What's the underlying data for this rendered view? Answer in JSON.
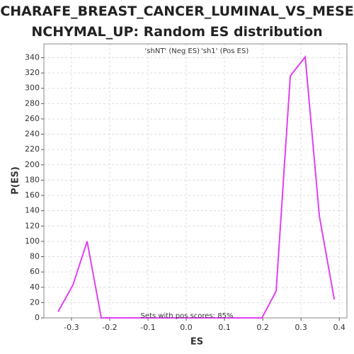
{
  "chart_data": {
    "type": "line",
    "title": "CHARAFE_BREAST_CANCER_LUMINAL_VS_MESENCHYMAL_UP: Random ES distribution",
    "x_label": "ES",
    "y_label": "P(ES)",
    "legend": [
      {
        "name": "'shNT' (Neg ES)",
        "color": "#4040d0"
      },
      {
        "name": "'sh1' (Pos ES)",
        "color": "#e03030"
      }
    ],
    "annotation": "Sets with pos scores: 85%",
    "x": [
      -0.335,
      -0.296,
      -0.259,
      -0.222,
      0.198,
      0.235,
      0.272,
      0.311,
      0.348,
      0.387
    ],
    "series": [
      {
        "color": "#e040f0",
        "values": [
          8,
          43,
          100,
          0,
          0,
          35,
          316,
          341,
          133,
          24
        ]
      }
    ],
    "xlim": [
      -0.372,
      0.42
    ],
    "xticks": [
      -0.3,
      -0.2,
      -0.1,
      {
        "value": 0,
        "label": "0.0"
      },
      0.1,
      0.2,
      0.3,
      0.4
    ],
    "ylim": [
      0,
      358
    ],
    "yticks": [
      0,
      20,
      40,
      60,
      80,
      100,
      120,
      140,
      160,
      180,
      200,
      220,
      240,
      260,
      280,
      300,
      320,
      340
    ],
    "grid": true
  }
}
